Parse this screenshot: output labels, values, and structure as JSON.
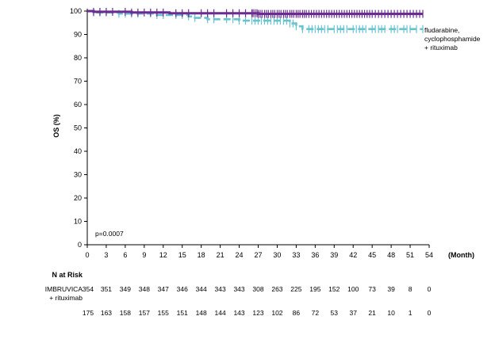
{
  "chart_data": {
    "type": "line",
    "chart_kind": "kaplan-meier survival curve",
    "ylabel": "OS (%)",
    "xlabel": "(Month)",
    "xlim": [
      0,
      54
    ],
    "ylim": [
      0,
      100
    ],
    "x_ticks": [
      "0",
      "3",
      "6",
      "9",
      "12",
      "15",
      "18",
      "21",
      "24",
      "27",
      "30",
      "33",
      "36",
      "39",
      "42",
      "45",
      "48",
      "51",
      "54"
    ],
    "y_ticks": [
      "0",
      "10",
      "20",
      "30",
      "40",
      "50",
      "60",
      "70",
      "80",
      "90",
      "100"
    ],
    "p_value": "p=0.0007",
    "series": [
      {
        "name": "IMBRUVICA + rituximab",
        "color": "#6a2c91",
        "style": "solid",
        "points": [
          [
            0,
            100
          ],
          [
            1,
            99.7
          ],
          [
            3,
            99.7
          ],
          [
            7,
            99.4
          ],
          [
            11,
            99.4
          ],
          [
            13,
            99.1
          ],
          [
            26,
            99.1
          ],
          [
            27,
            98.8
          ],
          [
            53,
            98.8
          ]
        ],
        "censor_times": [
          1,
          2,
          3,
          4,
          6,
          7,
          8,
          9,
          10,
          11,
          12,
          14,
          15,
          16,
          18,
          19,
          20,
          22,
          23,
          24,
          25,
          26,
          26.2,
          26.5,
          26.8,
          27,
          27.3,
          27.6,
          28,
          28.3,
          28.6,
          29,
          29.3,
          29.6,
          30,
          30.3,
          30.6,
          31,
          31.3,
          31.6,
          32,
          32.3,
          32.6,
          33,
          33.3,
          33.6,
          34,
          34.3,
          34.6,
          35,
          35.4,
          35.8,
          36.2,
          36.6,
          37,
          37.4,
          37.8,
          38.2,
          38.6,
          39,
          39.4,
          39.8,
          40.2,
          40.6,
          41,
          41.4,
          41.8,
          42.2,
          42.6,
          43,
          43.4,
          43.8,
          44.2,
          44.6,
          45,
          45.5,
          46,
          46.5,
          47,
          47.5,
          48,
          48.5,
          49,
          49.5,
          50,
          50.5,
          51,
          51.5,
          52,
          52.5,
          53
        ]
      },
      {
        "name": "fludarabine, cyclophosphamide + rituximab",
        "label_lines": [
          "fludarabine,",
          "cyclophosphamide",
          "+ rituximab"
        ],
        "color": "#69c3d0",
        "style": "dashed",
        "points": [
          [
            0,
            100
          ],
          [
            1,
            99.4
          ],
          [
            3,
            99.4
          ],
          [
            5,
            98.9
          ],
          [
            9,
            98.9
          ],
          [
            11,
            98.3
          ],
          [
            15,
            98.3
          ],
          [
            16,
            97.7
          ],
          [
            17,
            97.1
          ],
          [
            19,
            96.5
          ],
          [
            24,
            96.5
          ],
          [
            24,
            95.9
          ],
          [
            32,
            95.9
          ],
          [
            32,
            94.7
          ],
          [
            33,
            93.5
          ],
          [
            34,
            92.3
          ],
          [
            53,
            92.3
          ]
        ],
        "censor_times": [
          1,
          2,
          3,
          5,
          6,
          7,
          8,
          10,
          11,
          12,
          14,
          15,
          16,
          17,
          19,
          20,
          22,
          23,
          24,
          25,
          26,
          26.5,
          27,
          27.5,
          28,
          28.5,
          29,
          29.5,
          30,
          30.5,
          31,
          31.5,
          32,
          32.5,
          33,
          34,
          35,
          35.5,
          36,
          36.5,
          37,
          37.5,
          38,
          39,
          39.5,
          40,
          40.5,
          41,
          42,
          42.5,
          43,
          43.5,
          44,
          45,
          45.5,
          46,
          46.5,
          47,
          48,
          48.5,
          49,
          50,
          50.5,
          51,
          52,
          53
        ]
      }
    ],
    "risk_table": {
      "title": "N at Risk",
      "rows": [
        {
          "label_lines": [
            "IMBRUVICA",
            "+ rituximab"
          ],
          "values": [
            "354",
            "351",
            "349",
            "348",
            "347",
            "346",
            "344",
            "343",
            "343",
            "308",
            "263",
            "225",
            "195",
            "152",
            "100",
            "73",
            "39",
            "8",
            "0"
          ]
        },
        {
          "label_lines": [],
          "values": [
            "175",
            "163",
            "158",
            "157",
            "155",
            "151",
            "148",
            "144",
            "143",
            "123",
            "102",
            "86",
            "72",
            "53",
            "37",
            "21",
            "10",
            "1",
            "0"
          ]
        }
      ]
    }
  }
}
